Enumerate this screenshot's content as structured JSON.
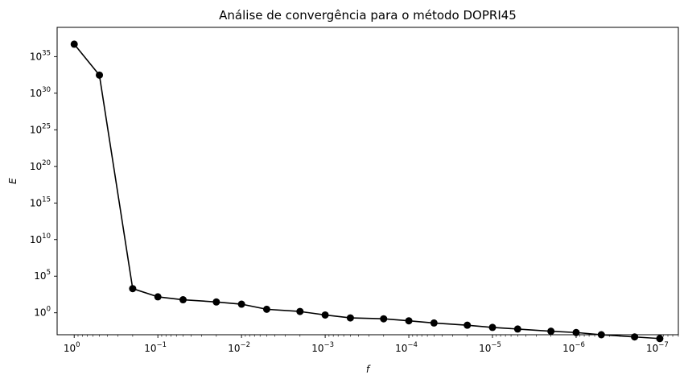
{
  "chart_data": {
    "type": "line",
    "title": "Análise de convergência para o método DOPRI45",
    "xlabel": "f",
    "ylabel": "E",
    "x_scale": "log",
    "y_scale": "log",
    "x_reversed": true,
    "xlim": [
      1.6,
      6e-08
    ],
    "ylim": [
      0.001,
      1e+39
    ],
    "x_ticks": [
      {
        "value": 1,
        "base": "10",
        "exp": "0"
      },
      {
        "value": 0.1,
        "base": "10",
        "exp": "−1"
      },
      {
        "value": 0.01,
        "base": "10",
        "exp": "−2"
      },
      {
        "value": 0.001,
        "base": "10",
        "exp": "−3"
      },
      {
        "value": 0.0001,
        "base": "10",
        "exp": "−4"
      },
      {
        "value": 1e-05,
        "base": "10",
        "exp": "−5"
      },
      {
        "value": 1e-06,
        "base": "10",
        "exp": "−6"
      },
      {
        "value": 1e-07,
        "base": "10",
        "exp": "−7"
      }
    ],
    "y_ticks": [
      {
        "value": 1,
        "base": "10",
        "exp": "0"
      },
      {
        "value": 100000.0,
        "base": "10",
        "exp": "5"
      },
      {
        "value": 10000000000.0,
        "base": "10",
        "exp": "10"
      },
      {
        "value": 1000000000000000.0,
        "base": "10",
        "exp": "15"
      },
      {
        "value": 1e+20,
        "base": "10",
        "exp": "20"
      },
      {
        "value": 1e+25,
        "base": "10",
        "exp": "25"
      },
      {
        "value": 1e+30,
        "base": "10",
        "exp": "30"
      },
      {
        "value": 1e+35,
        "base": "10",
        "exp": "35"
      }
    ],
    "series": [
      {
        "color": "#000000",
        "marker": "circle",
        "x": [
          1,
          0.5,
          0.2,
          0.1,
          0.05,
          0.02,
          0.01,
          0.005,
          0.002,
          0.001,
          0.0005,
          0.0002,
          0.0001,
          5e-05,
          2e-05,
          1e-05,
          5e-06,
          2e-06,
          1e-06,
          5e-07,
          2e-07,
          1e-07
        ],
        "y": [
          5e+36,
          3e+32,
          2000.0,
          150.0,
          60.0,
          30.0,
          15.0,
          3,
          1.5,
          0.5,
          0.2,
          0.15,
          0.08,
          0.04,
          0.02,
          0.01,
          0.006,
          0.003,
          0.002,
          0.001,
          0.0005,
          0.0003
        ]
      }
    ]
  }
}
